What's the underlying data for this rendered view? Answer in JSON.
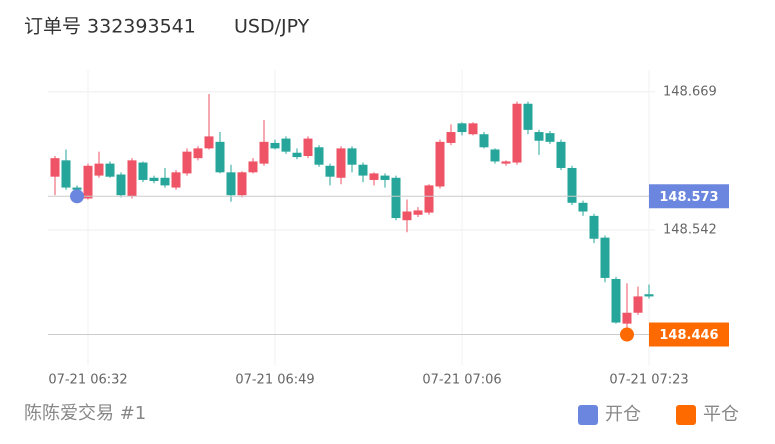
{
  "header": {
    "order": "订单号 332393541",
    "symbol": "USD/JPY"
  },
  "chart_data": {
    "type": "candlestick",
    "categories": [
      null,
      null,
      null,
      "07-21 06:32",
      null,
      null,
      null,
      null,
      null,
      null,
      null,
      null,
      null,
      null,
      null,
      null,
      null,
      null,
      null,
      null,
      "07-21 06:49",
      null,
      null,
      null,
      null,
      null,
      null,
      null,
      null,
      null,
      null,
      null,
      null,
      null,
      null,
      null,
      null,
      "07-21 07:06",
      null,
      null,
      null,
      null,
      null,
      null,
      null,
      null,
      null,
      null,
      null,
      null,
      null,
      null,
      null,
      null,
      "07-21 07:23"
    ],
    "values": [
      [
        148.591,
        148.61,
        148.574,
        148.608
      ],
      [
        148.606,
        148.616,
        148.579,
        148.581
      ],
      [
        148.581,
        148.583,
        148.577,
        148.579
      ],
      [
        148.571,
        148.603,
        148.57,
        148.601
      ],
      [
        148.592,
        148.614,
        148.59,
        148.603
      ],
      [
        148.603,
        148.605,
        148.59,
        148.591
      ],
      [
        148.593,
        148.595,
        148.572,
        148.574
      ],
      [
        148.573,
        148.608,
        148.571,
        148.606
      ],
      [
        148.604,
        148.605,
        148.586,
        148.588
      ],
      [
        148.59,
        148.592,
        148.585,
        148.587
      ],
      [
        148.59,
        148.599,
        148.581,
        148.583
      ],
      [
        148.581,
        148.597,
        148.579,
        148.595
      ],
      [
        148.594,
        148.617,
        148.592,
        148.614
      ],
      [
        148.608,
        148.619,
        148.606,
        148.617
      ],
      [
        148.617,
        148.667,
        148.616,
        148.628
      ],
      [
        148.623,
        148.632,
        148.594,
        148.595
      ],
      [
        148.595,
        148.602,
        148.568,
        148.574
      ],
      [
        148.574,
        148.596,
        148.572,
        148.595
      ],
      [
        148.595,
        148.608,
        148.594,
        148.605
      ],
      [
        148.603,
        148.643,
        148.601,
        148.623
      ],
      [
        148.622,
        148.625,
        148.616,
        148.617
      ],
      [
        148.626,
        148.628,
        148.612,
        148.614
      ],
      [
        148.613,
        148.617,
        148.607,
        148.609
      ],
      [
        148.61,
        148.628,
        148.608,
        148.626
      ],
      [
        148.618,
        148.62,
        148.6,
        148.602
      ],
      [
        148.601,
        148.603,
        148.583,
        148.591
      ],
      [
        148.59,
        148.619,
        148.584,
        148.617
      ],
      [
        148.617,
        148.619,
        148.595,
        148.602
      ],
      [
        148.602,
        148.604,
        148.586,
        148.592
      ],
      [
        148.588,
        148.595,
        148.583,
        148.594
      ],
      [
        148.592,
        148.594,
        148.581,
        148.588
      ],
      [
        148.59,
        148.592,
        148.551,
        148.553
      ],
      [
        148.551,
        148.57,
        148.54,
        148.559
      ],
      [
        148.556,
        148.563,
        148.554,
        148.56
      ],
      [
        148.558,
        148.584,
        148.556,
        148.583
      ],
      [
        148.582,
        148.625,
        148.58,
        148.623
      ],
      [
        148.622,
        148.639,
        148.62,
        148.632
      ],
      [
        148.64,
        148.641,
        148.629,
        148.632
      ],
      [
        148.63,
        148.641,
        148.629,
        148.64
      ],
      [
        148.63,
        148.632,
        148.617,
        148.618
      ],
      [
        148.616,
        148.617,
        148.603,
        148.605
      ],
      [
        148.603,
        148.606,
        148.601,
        148.605
      ],
      [
        148.604,
        148.66,
        148.602,
        148.658
      ],
      [
        148.658,
        148.66,
        148.63,
        148.634
      ],
      [
        148.632,
        148.634,
        148.611,
        148.624
      ],
      [
        148.631,
        148.633,
        148.621,
        148.623
      ],
      [
        148.623,
        148.625,
        148.597,
        148.599
      ],
      [
        148.599,
        148.601,
        148.565,
        148.567
      ],
      [
        148.567,
        148.569,
        148.555,
        148.559
      ],
      [
        148.555,
        148.557,
        148.53,
        148.534
      ],
      [
        148.535,
        148.537,
        148.494,
        148.498
      ],
      [
        148.497,
        148.499,
        148.456,
        148.457
      ],
      [
        148.456,
        148.493,
        148.45,
        148.466
      ],
      [
        148.466,
        148.49,
        148.464,
        148.481
      ],
      [
        148.483,
        148.492,
        148.479,
        148.481
      ]
    ],
    "up_color": "#ef5366",
    "down_color": "#26a69a",
    "ylim": [
      148.418,
      148.689
    ],
    "yticks": [
      148.669,
      148.542
    ],
    "grid": true,
    "markers": [
      {
        "name": "开仓",
        "value": 148.573,
        "color": "#6b86de"
      },
      {
        "name": "平仓",
        "value": 148.446,
        "color": "#ff6a00"
      }
    ]
  },
  "footer": "陈陈爱交易 #1"
}
